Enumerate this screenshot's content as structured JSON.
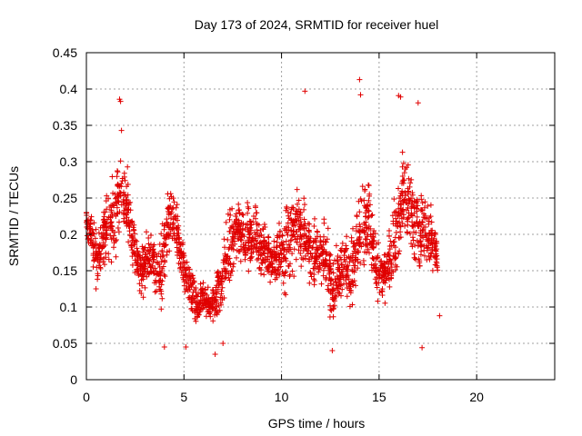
{
  "chart_data": {
    "type": "scatter",
    "title": "Day 173 of 2024, SRMTID for receiver huel",
    "xlabel": "GPS time / hours",
    "ylabel": "SRMTID / TECUs",
    "xlim": [
      0,
      24
    ],
    "ylim": [
      0,
      0.45
    ],
    "x_ticks": [
      0,
      5,
      10,
      15,
      20
    ],
    "x_tick_labels": [
      "0",
      "5",
      "10",
      "15",
      "20"
    ],
    "y_ticks": [
      0,
      0.05,
      0.1,
      0.15,
      0.2,
      0.25,
      0.3,
      0.35,
      0.4,
      0.45
    ],
    "y_tick_labels": [
      "0",
      "0.05",
      "0.1",
      "0.15",
      "0.2",
      "0.25",
      "0.3",
      "0.35",
      "0.4",
      "0.45"
    ],
    "grid": true,
    "marker": "plus",
    "series": [
      {
        "name": "SRMTID",
        "color": "#e00000",
        "envelope": {
          "x": [
            0.0,
            0.3,
            0.6,
            0.9,
            1.2,
            1.5,
            1.8,
            2.1,
            2.4,
            2.7,
            3.0,
            3.3,
            3.6,
            3.9,
            4.2,
            4.5,
            4.8,
            5.1,
            5.4,
            5.7,
            6.0,
            6.3,
            6.6,
            6.9,
            7.2,
            7.5,
            7.8,
            8.1,
            8.4,
            8.7,
            9.0,
            9.3,
            9.6,
            9.9,
            10.2,
            10.5,
            10.8,
            11.1,
            11.4,
            11.7,
            12.0,
            12.3,
            12.6,
            12.9,
            13.2,
            13.5,
            13.8,
            14.1,
            14.4,
            14.7,
            15.0,
            15.3,
            15.6,
            15.9,
            16.2,
            16.5,
            16.8,
            17.1,
            17.4,
            17.7,
            18.0
          ],
          "center": [
            0.21,
            0.2,
            0.16,
            0.2,
            0.21,
            0.23,
            0.26,
            0.24,
            0.19,
            0.15,
            0.16,
            0.17,
            0.15,
            0.16,
            0.22,
            0.22,
            0.18,
            0.14,
            0.12,
            0.1,
            0.11,
            0.1,
            0.11,
            0.13,
            0.17,
            0.19,
            0.21,
            0.2,
            0.19,
            0.2,
            0.18,
            0.17,
            0.16,
            0.17,
            0.18,
            0.2,
            0.22,
            0.2,
            0.18,
            0.17,
            0.17,
            0.18,
            0.12,
            0.15,
            0.16,
            0.14,
            0.18,
            0.2,
            0.22,
            0.18,
            0.14,
            0.15,
            0.17,
            0.21,
            0.25,
            0.24,
            0.22,
            0.2,
            0.21,
            0.19,
            0.17
          ],
          "spread": [
            0.03,
            0.05,
            0.06,
            0.07,
            0.08,
            0.1,
            0.1,
            0.07,
            0.06,
            0.05,
            0.05,
            0.05,
            0.06,
            0.08,
            0.07,
            0.06,
            0.07,
            0.05,
            0.05,
            0.04,
            0.04,
            0.04,
            0.05,
            0.07,
            0.09,
            0.08,
            0.07,
            0.07,
            0.07,
            0.07,
            0.06,
            0.06,
            0.05,
            0.07,
            0.09,
            0.1,
            0.09,
            0.07,
            0.07,
            0.07,
            0.08,
            0.08,
            0.06,
            0.08,
            0.07,
            0.07,
            0.1,
            0.12,
            0.1,
            0.07,
            0.06,
            0.06,
            0.07,
            0.1,
            0.1,
            0.09,
            0.1,
            0.09,
            0.08,
            0.06,
            0.05
          ],
          "points_per_step": 36,
          "seed": 173
        },
        "notable_points": [
          {
            "x": 1.7,
            "y": 0.386
          },
          {
            "x": 1.75,
            "y": 0.383
          },
          {
            "x": 11.2,
            "y": 0.397
          },
          {
            "x": 14.0,
            "y": 0.413
          },
          {
            "x": 14.05,
            "y": 0.392
          },
          {
            "x": 16.0,
            "y": 0.391
          },
          {
            "x": 16.1,
            "y": 0.389
          },
          {
            "x": 17.0,
            "y": 0.381
          },
          {
            "x": 4.0,
            "y": 0.045
          },
          {
            "x": 5.1,
            "y": 0.045
          },
          {
            "x": 6.6,
            "y": 0.035
          },
          {
            "x": 7.0,
            "y": 0.05
          },
          {
            "x": 12.6,
            "y": 0.04
          },
          {
            "x": 17.2,
            "y": 0.044
          },
          {
            "x": 18.1,
            "y": 0.088
          },
          {
            "x": 0.0,
            "y": 0.23
          },
          {
            "x": 0.1,
            "y": 0.22
          }
        ]
      }
    ]
  }
}
